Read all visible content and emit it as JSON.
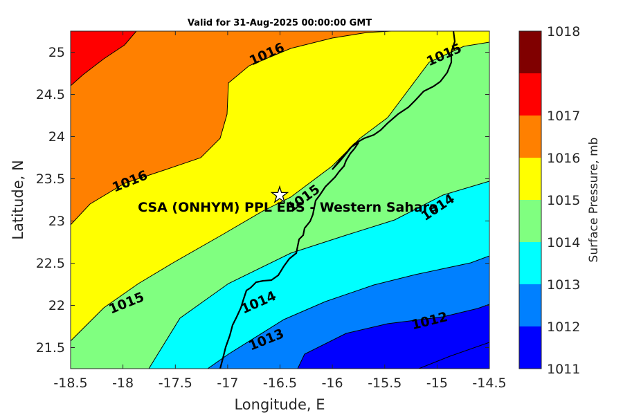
{
  "title": "Valid for 31-Aug-2025 00:00:00 GMT",
  "site_label": "CSA (ONHYM) PPL EBS  - Western Sahara",
  "site_marker": {
    "lon": -16.5,
    "lat": 23.28,
    "icon": "star-icon"
  },
  "x_axis": {
    "label": "Longitude, E",
    "range": [
      -18.5,
      -14.5
    ],
    "ticks": [
      "-18.5",
      "-18",
      "-17.5",
      "-17",
      "-16.5",
      "-16",
      "-15.5",
      "-15",
      "-14.5"
    ]
  },
  "y_axis": {
    "label": "Latitude, N",
    "range": [
      21.25,
      25.25
    ],
    "ticks": [
      "21.5",
      "22",
      "22.5",
      "23",
      "23.5",
      "24",
      "24.5",
      "25"
    ]
  },
  "colorbar": {
    "label": "Surface Pressure, mb",
    "ticks": [
      "1011",
      "1012",
      "1013",
      "1014",
      "1015",
      "1016",
      "1017",
      "1018"
    ],
    "colors": [
      "#0000ff",
      "#0080ff",
      "#00ffff",
      "#80ff80",
      "#ffff00",
      "#ff8000",
      "#ff0000",
      "#800000"
    ]
  },
  "contour_labels": [
    "1016",
    "1015",
    "1016",
    "1015",
    "1015",
    "1014",
    "1014",
    "1013",
    "1012"
  ],
  "chart_data": {
    "type": "heatmap",
    "title": "Valid for 31-Aug-2025 00:00:00 GMT",
    "xlabel": "Longitude, E",
    "ylabel": "Latitude, N",
    "xlim": [
      -18.5,
      -14.5
    ],
    "ylim": [
      21.25,
      25.25
    ],
    "colorbar_label": "Surface Pressure, mb",
    "levels": [
      1011,
      1012,
      1013,
      1014,
      1015,
      1016,
      1017,
      1018
    ],
    "contour_lines": [
      1012,
      1013,
      1014,
      1015,
      1016
    ],
    "grid": false
  }
}
